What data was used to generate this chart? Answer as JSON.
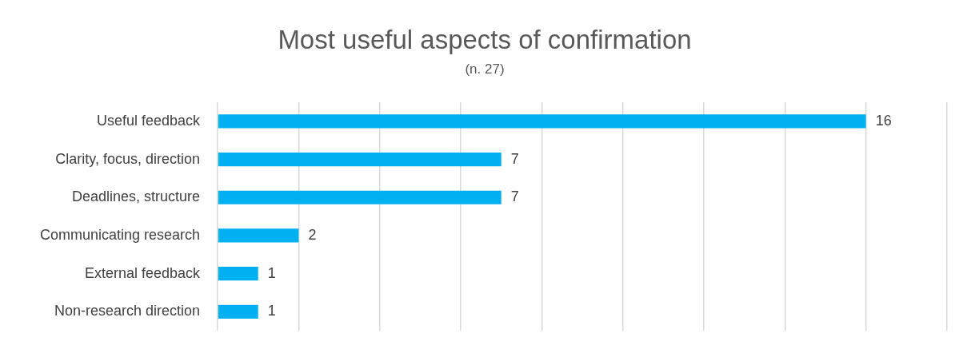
{
  "chart_data": {
    "type": "bar",
    "orientation": "horizontal",
    "title": "Most useful aspects of confirmation",
    "subtitle": "(n. 27)",
    "categories": [
      "Useful feedback",
      "Clarity, focus, direction",
      "Deadlines, structure",
      "Communicating research",
      "External feedback",
      "Non-research direction"
    ],
    "values": [
      16,
      7,
      7,
      2,
      1,
      1
    ],
    "color": "#00b0f0",
    "xlim": [
      0,
      18
    ],
    "xticks": [
      {
        "value": 0,
        "label": null
      },
      {
        "value": 2,
        "label": null
      },
      {
        "value": 4,
        "label": null
      },
      {
        "value": 6,
        "label": null
      },
      {
        "value": 8,
        "label": null
      },
      {
        "value": 10,
        "label": null
      },
      {
        "value": 12,
        "label": null
      },
      {
        "value": 14,
        "label": null
      },
      {
        "value": 16,
        "label": null
      },
      {
        "value": 18,
        "label": null
      }
    ],
    "tick_labels": "y",
    "grid": "x",
    "legend": false,
    "data_labels": true
  }
}
